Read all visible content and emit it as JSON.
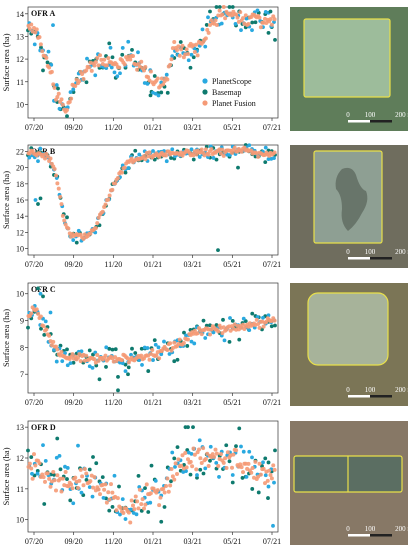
{
  "legend": [
    {
      "name": "PlanetScope",
      "color": "#29a9e0"
    },
    {
      "name": "Basemap",
      "color": "#0e7a6e"
    },
    {
      "name": "Planet Fusion",
      "color": "#f59a76"
    }
  ],
  "chart_data": [
    {
      "type": "scatter",
      "title": "OFR A",
      "ylabel": "Surface area (ha)",
      "xticks": [
        "07/20",
        "09/20",
        "11/20",
        "01/21",
        "03/21",
        "05/21",
        "07/21"
      ],
      "yticks": [
        10,
        11,
        12,
        13,
        14
      ],
      "ylim": [
        9.4,
        14.3
      ],
      "knots": [
        [
          0,
          13.5
        ],
        [
          4,
          13.0
        ],
        [
          8,
          12.0
        ],
        [
          11,
          10.5
        ],
        [
          15,
          9.6
        ],
        [
          19,
          11.0
        ],
        [
          24,
          11.7
        ],
        [
          30,
          11.9
        ],
        [
          36,
          11.7
        ],
        [
          41,
          12.2
        ],
        [
          46,
          11.5
        ],
        [
          51,
          11.0
        ],
        [
          55,
          10.9
        ],
        [
          58,
          12.4
        ],
        [
          64,
          12.4
        ],
        [
          70,
          12.6
        ],
        [
          73,
          13.6
        ],
        [
          78,
          14.0
        ],
        [
          84,
          13.9
        ],
        [
          90,
          13.8
        ],
        [
          96,
          13.7
        ],
        [
          99,
          13.6
        ]
      ],
      "pf_noise": 0.15,
      "ps_noise": 0.3,
      "bm_noise": 0.35,
      "outliers_ps": [
        [
          10,
          13.5
        ],
        [
          33,
          12.5
        ],
        [
          44,
          12.3
        ]
      ],
      "outliers_bm": [
        [
          6,
          11.5
        ],
        [
          12,
          10.7
        ],
        [
          49,
          10.4
        ],
        [
          97,
          14.1
        ]
      ],
      "map": {
        "scale_labels": [
          "0",
          "100",
          "200 m"
        ],
        "bg": "#5f7d5a",
        "field": "#9dbc9b",
        "outline": "#e8e04a"
      }
    },
    {
      "type": "scatter",
      "title": "OFR B",
      "ylabel": "Surface area (ha)",
      "xticks": [
        "07/20",
        "09/20",
        "11/20",
        "01/21",
        "03/21",
        "05/21",
        "07/21"
      ],
      "yticks": [
        10,
        12,
        14,
        16,
        18,
        20,
        22
      ],
      "ylim": [
        9.2,
        22.8
      ],
      "knots": [
        [
          0,
          21.8
        ],
        [
          8,
          21.5
        ],
        [
          11,
          19.5
        ],
        [
          14,
          14.0
        ],
        [
          17,
          11.8
        ],
        [
          22,
          11.5
        ],
        [
          27,
          12.5
        ],
        [
          31,
          15.5
        ],
        [
          35,
          18.5
        ],
        [
          40,
          20.8
        ],
        [
          48,
          21.5
        ],
        [
          58,
          21.7
        ],
        [
          70,
          21.9
        ],
        [
          80,
          22.0
        ],
        [
          86,
          22.2
        ],
        [
          92,
          21.7
        ],
        [
          99,
          21.6
        ]
      ],
      "pf_noise": 0.2,
      "ps_noise": 0.4,
      "bm_noise": 0.45,
      "outliers_ps": [
        [
          4,
          20.8
        ],
        [
          3,
          16.0
        ]
      ],
      "outliers_bm": [
        [
          4,
          15.5
        ],
        [
          5,
          16.2
        ],
        [
          76,
          9.8
        ],
        [
          84,
          20.0
        ]
      ],
      "map": {
        "scale_labels": [
          "0",
          "100",
          "200 m"
        ],
        "bg": "#6f6d5e",
        "field": "#8e9f93",
        "outline": "#e8e04a"
      }
    },
    {
      "type": "scatter",
      "title": "OFR C",
      "ylabel": "Surface area (ha)",
      "xticks": [
        "07/20",
        "09/20",
        "11/20",
        "01/21",
        "03/21",
        "05/21",
        "07/21"
      ],
      "yticks": [
        7,
        8,
        9,
        10
      ],
      "ylim": [
        6.3,
        10.4
      ],
      "knots": [
        [
          0,
          9.1
        ],
        [
          3,
          9.5
        ],
        [
          6,
          8.8
        ],
        [
          10,
          8.0
        ],
        [
          14,
          7.7
        ],
        [
          20,
          7.6
        ],
        [
          28,
          7.6
        ],
        [
          36,
          7.6
        ],
        [
          44,
          7.6
        ],
        [
          52,
          7.8
        ],
        [
          58,
          8.0
        ],
        [
          62,
          8.2
        ],
        [
          66,
          8.6
        ],
        [
          70,
          8.6
        ],
        [
          78,
          8.7
        ],
        [
          86,
          8.8
        ],
        [
          92,
          8.9
        ],
        [
          99,
          9.0
        ]
      ],
      "pf_noise": 0.08,
      "ps_noise": 0.2,
      "bm_noise": 0.3,
      "outliers_ps": [
        [
          5,
          10.0
        ],
        [
          9,
          9.3
        ]
      ],
      "outliers_bm": [
        [
          4,
          10.2
        ],
        [
          6,
          9.9
        ],
        [
          36,
          6.4
        ],
        [
          36,
          6.9
        ],
        [
          40,
          7.0
        ]
      ],
      "map": {
        "scale_labels": [
          "0",
          "100",
          "200 m"
        ],
        "bg": "#7b7556",
        "field": "#a7b39a",
        "outline": "#e8e04a"
      }
    },
    {
      "type": "scatter",
      "title": "OFR D",
      "ylabel": "Surface area (ha)",
      "xticks": [
        "07/20",
        "09/20",
        "11/20",
        "01/21",
        "03/21",
        "05/21",
        "07/21"
      ],
      "yticks": [
        10,
        11,
        12,
        13
      ],
      "ylim": [
        9.6,
        13.2
      ],
      "knots": [
        [
          0,
          11.8
        ],
        [
          8,
          11.6
        ],
        [
          14,
          11.2
        ],
        [
          22,
          11.3
        ],
        [
          28,
          11.1
        ],
        [
          34,
          10.8
        ],
        [
          38,
          10.2
        ],
        [
          42,
          10.4
        ],
        [
          48,
          10.8
        ],
        [
          54,
          11.0
        ],
        [
          60,
          11.7
        ],
        [
          66,
          12.0
        ],
        [
          74,
          12.1
        ],
        [
          80,
          12.0
        ],
        [
          86,
          11.8
        ],
        [
          92,
          11.6
        ],
        [
          99,
          11.5
        ]
      ],
      "pf_noise": 0.2,
      "ps_noise": 0.35,
      "bm_noise": 0.45,
      "outliers_ps": [
        [
          98,
          9.8
        ],
        [
          20,
          12.4
        ]
      ],
      "outliers_bm": [
        [
          63,
          13.0
        ],
        [
          64,
          13.0
        ],
        [
          66,
          13.0
        ],
        [
          96,
          10.7
        ]
      ],
      "map": {
        "scale_labels": [
          "0",
          "100",
          "200 m"
        ],
        "bg": "#877866",
        "field": "#5b6e62",
        "outline": "#e8e04a"
      }
    }
  ]
}
